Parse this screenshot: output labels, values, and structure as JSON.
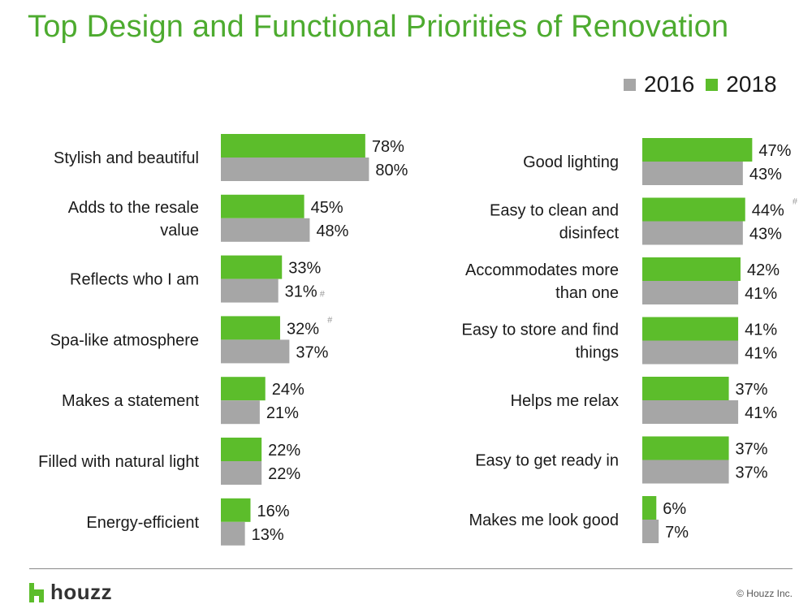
{
  "title": "Top Design and Functional Priorities of Renovation",
  "colors": {
    "series_2016": "#a6a6a6",
    "series_2018": "#5cbd2b",
    "title": "#4dab2f"
  },
  "footer": {
    "brand": "houzz",
    "copyright": "© Houzz Inc."
  },
  "chart_data": [
    {
      "type": "bar",
      "orientation": "horizontal",
      "title": "Top Design and Functional Priorities of Renovation",
      "series": [
        {
          "name": "2016",
          "values": [
            80,
            48,
            31,
            37,
            21,
            22,
            13
          ]
        },
        {
          "name": "2018",
          "values": [
            78,
            45,
            33,
            32,
            24,
            22,
            16
          ]
        }
      ],
      "categories": [
        [
          "Stylish and beautiful"
        ],
        [
          "Adds to the resale",
          "value"
        ],
        [
          "Reflects who I am"
        ],
        [
          "Spa-like atmosphere"
        ],
        [
          "Makes a statement"
        ],
        [
          "Filled with natural light"
        ],
        [
          "Energy-efficient"
        ]
      ],
      "value_labels_2018": [
        "78%",
        "45%",
        "33%",
        "32%",
        "24%",
        "22%",
        "16%"
      ],
      "value_labels_2016": [
        "80%",
        "48%",
        "31%",
        "37%",
        "21%",
        "22%",
        "13%"
      ],
      "significance_marks": [
        "",
        "",
        "",
        "#",
        "",
        "",
        ""
      ],
      "significance_marks_2016": [
        "",
        "",
        "#",
        "",
        "",
        "",
        ""
      ],
      "legend": [
        "2016",
        "2018"
      ],
      "unit": "%"
    },
    {
      "type": "bar",
      "orientation": "horizontal",
      "series": [
        {
          "name": "2016",
          "values": [
            43,
            43,
            41,
            41,
            41,
            37,
            7
          ]
        },
        {
          "name": "2018",
          "values": [
            47,
            44,
            42,
            41,
            37,
            37,
            6
          ]
        }
      ],
      "categories": [
        [
          "Good lighting"
        ],
        [
          "Easy to clean and",
          "disinfect"
        ],
        [
          "Accommodates more",
          "than one"
        ],
        [
          "Easy to store and find",
          "things"
        ],
        [
          "Helps me relax"
        ],
        [
          "Easy to get ready in"
        ],
        [
          "Makes me look good"
        ]
      ],
      "value_labels_2018": [
        "47%",
        "44%",
        "42%",
        "41%",
        "37%",
        "37%",
        "6%"
      ],
      "value_labels_2016": [
        "43%",
        "43%",
        "41%",
        "41%",
        "41%",
        "37%",
        "7%"
      ],
      "significance_marks": [
        "",
        "#",
        "",
        "",
        "",
        "",
        ""
      ],
      "significance_marks_2016": [
        "",
        "",
        "",
        "",
        "",
        "",
        ""
      ],
      "legend": [
        "2016",
        "2018"
      ],
      "unit": "%"
    }
  ]
}
